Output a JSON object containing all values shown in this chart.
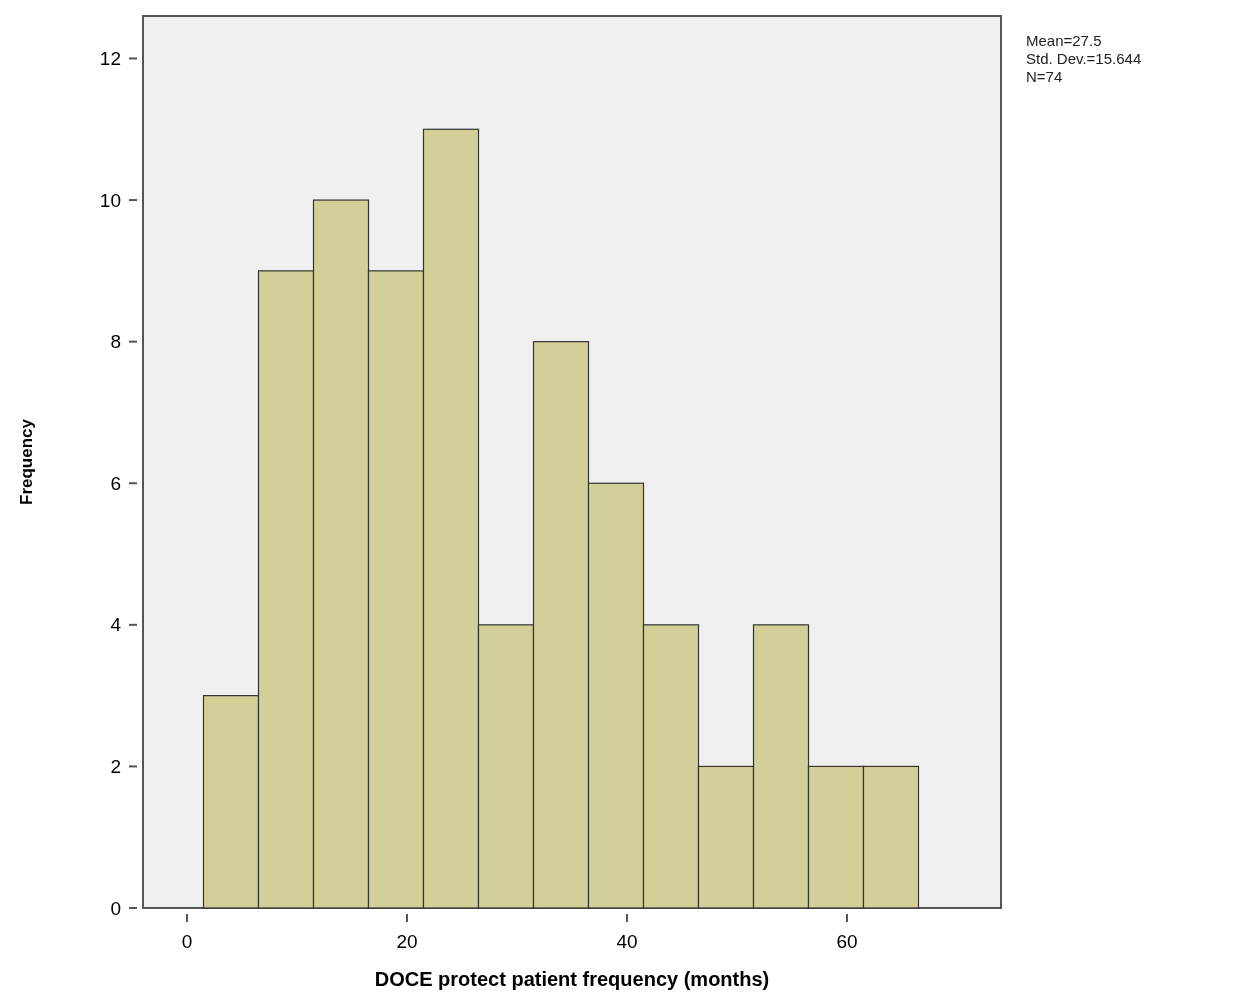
{
  "chart_data": {
    "type": "histogram",
    "xlabel": "DOCE protect patient frequency (months)",
    "ylabel": "Frequency",
    "bins": [
      1.5,
      6.5,
      11.5,
      16.5,
      21.5,
      26.5,
      31.5,
      36.5,
      41.5,
      46.5,
      51.5,
      56.5,
      61.5,
      66.5
    ],
    "values": [
      3,
      9,
      10,
      9,
      11,
      4,
      8,
      6,
      4,
      2,
      4,
      2,
      2
    ],
    "color": "#d3cf98",
    "xlim": [
      -4,
      74
    ],
    "xticks": [
      0,
      20,
      40,
      60
    ],
    "ylim": [
      0,
      12.6
    ],
    "yticks": [
      0,
      2,
      4,
      6,
      8,
      10,
      12
    ],
    "grid": false,
    "annotations": [
      "Mean=27.5",
      "Std. Dev.=15.644",
      "N=74"
    ]
  }
}
